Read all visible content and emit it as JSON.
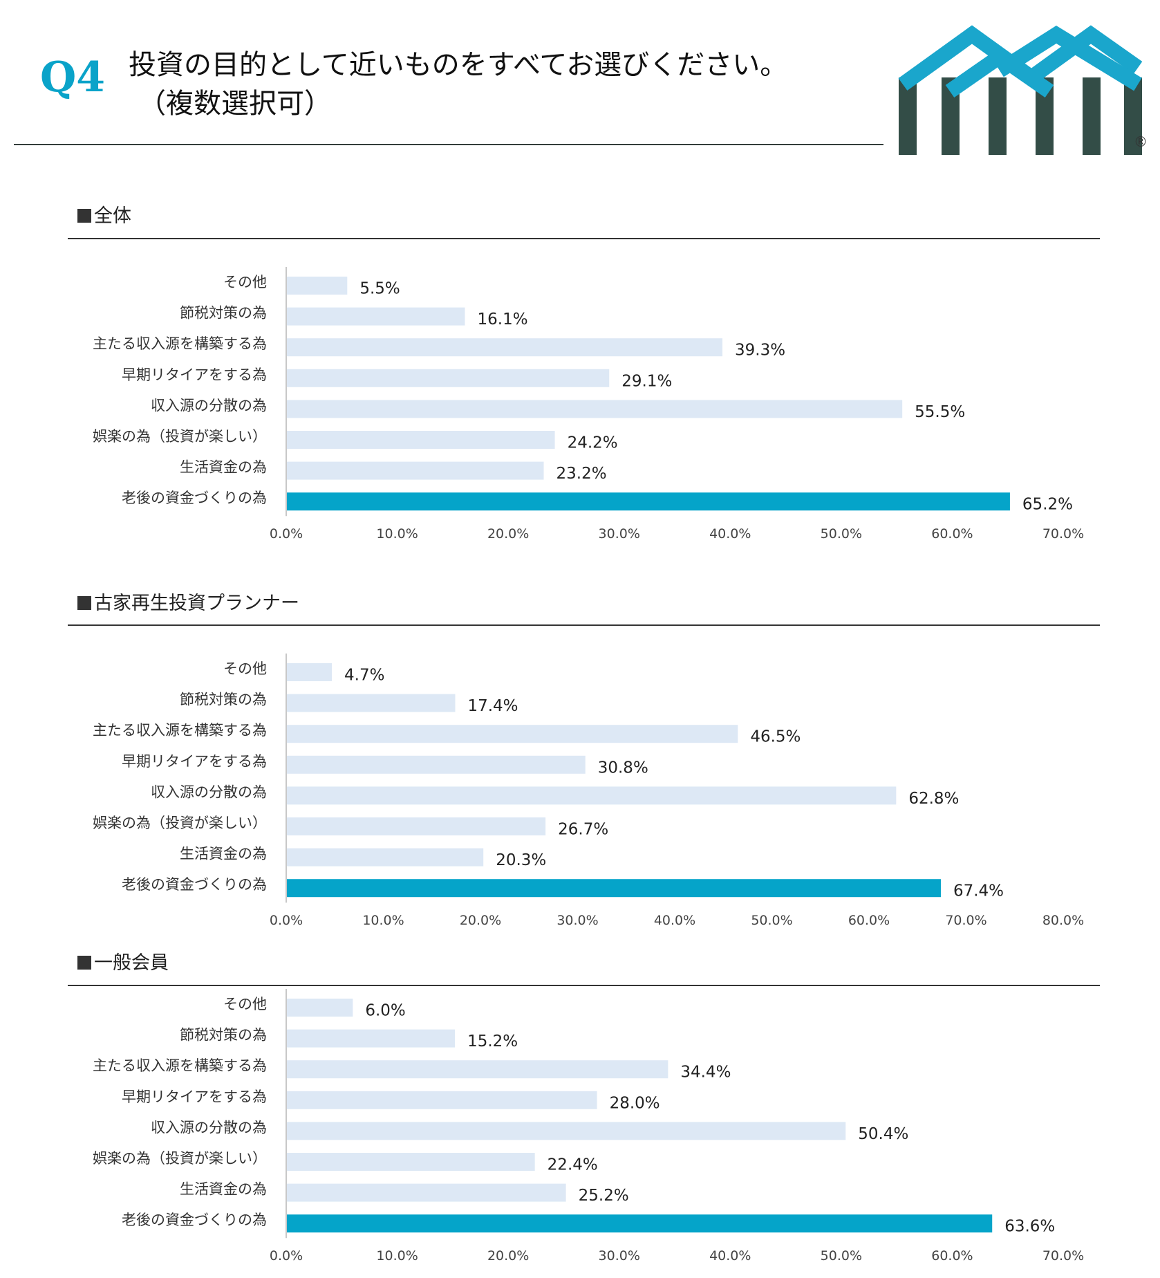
{
  "header": {
    "question_no": "Q4",
    "title_line1": "投資の目的として近いものをすべてお選びください。",
    "title_line2": "（複数選択可）"
  },
  "logo": {
    "registered_mark": "®",
    "colors": {
      "roof": "#1aa6cc",
      "pillar": "#334d47"
    }
  },
  "colors": {
    "bar": "#dde8f5",
    "highlight": "#05a4c9",
    "axis": "#c8c8c8"
  },
  "sections": [
    {
      "title": "全体"
    },
    {
      "title": "古家再生投資プランナー"
    },
    {
      "title": "一般会員"
    }
  ],
  "chart_data": [
    {
      "type": "bar",
      "orientation": "horizontal",
      "title": "全体",
      "categories": [
        "その他",
        "節税対策の為",
        "主たる収入源を構築する為",
        "早期リタイアをする為",
        "収入源の分散の為",
        "娯楽の為（投資が楽しい）",
        "生活資金の為",
        "老後の資金づくりの為"
      ],
      "values": [
        5.5,
        16.1,
        39.3,
        29.1,
        55.5,
        24.2,
        23.2,
        65.2
      ],
      "value_labels": [
        "5.5%",
        "16.1%",
        "39.3%",
        "29.1%",
        "55.5%",
        "24.2%",
        "23.2%",
        "65.2%"
      ],
      "highlight_index": 7,
      "xlim": [
        0,
        70
      ],
      "ticks": [
        "0.0%",
        "10.0%",
        "20.0%",
        "30.0%",
        "40.0%",
        "50.0%",
        "60.0%",
        "70.0%"
      ]
    },
    {
      "type": "bar",
      "orientation": "horizontal",
      "title": "古家再生投資プランナー",
      "categories": [
        "その他",
        "節税対策の為",
        "主たる収入源を構築する為",
        "早期リタイアをする為",
        "収入源の分散の為",
        "娯楽の為（投資が楽しい）",
        "生活資金の為",
        "老後の資金づくりの為"
      ],
      "values": [
        4.7,
        17.4,
        46.5,
        30.8,
        62.8,
        26.7,
        20.3,
        67.4
      ],
      "value_labels": [
        "4.7%",
        "17.4%",
        "46.5%",
        "30.8%",
        "62.8%",
        "26.7%",
        "20.3%",
        "67.4%"
      ],
      "highlight_index": 7,
      "xlim": [
        0,
        80
      ],
      "ticks": [
        "0.0%",
        "10.0%",
        "20.0%",
        "30.0%",
        "40.0%",
        "50.0%",
        "60.0%",
        "70.0%",
        "80.0%"
      ]
    },
    {
      "type": "bar",
      "orientation": "horizontal",
      "title": "一般会員",
      "categories": [
        "その他",
        "節税対策の為",
        "主たる収入源を構築する為",
        "早期リタイアをする為",
        "収入源の分散の為",
        "娯楽の為（投資が楽しい）",
        "生活資金の為",
        "老後の資金づくりの為"
      ],
      "values": [
        6.0,
        15.2,
        34.4,
        28.0,
        50.4,
        22.4,
        25.2,
        63.6
      ],
      "value_labels": [
        "6.0%",
        "15.2%",
        "34.4%",
        "28.0%",
        "50.4%",
        "22.4%",
        "25.2%",
        "63.6%"
      ],
      "highlight_index": 7,
      "xlim": [
        0,
        70
      ],
      "ticks": [
        "0.0%",
        "10.0%",
        "20.0%",
        "30.0%",
        "40.0%",
        "50.0%",
        "60.0%",
        "70.0%"
      ]
    }
  ]
}
